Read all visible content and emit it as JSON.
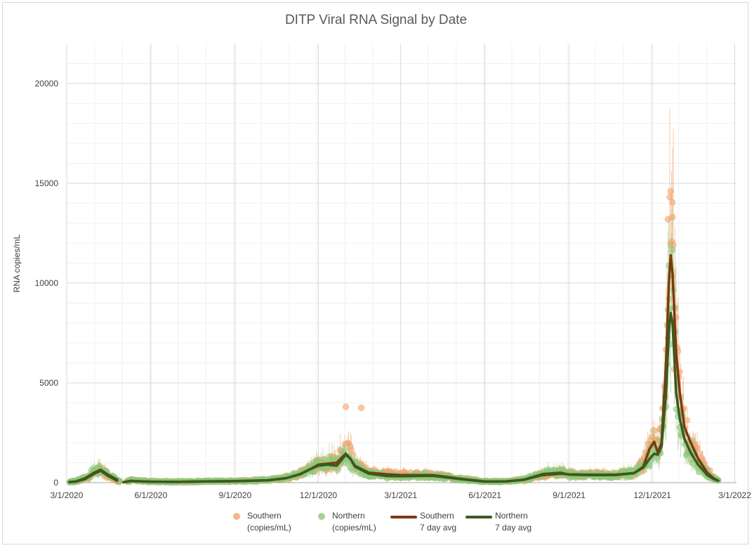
{
  "chart_data": {
    "type": "scatter",
    "title": "DITP Viral RNA Signal by Date",
    "xlabel": "",
    "ylabel": "RNA copies/mL",
    "ylim": [
      0,
      22000
    ],
    "yticks": [
      0,
      5000,
      10000,
      15000,
      20000
    ],
    "ytick_labels": [
      "0",
      "5000",
      "10000",
      "15000",
      "20000"
    ],
    "xlim_days": [
      0,
      732
    ],
    "xticks": [
      {
        "day": 0,
        "label": "3/1/2020"
      },
      {
        "day": 92,
        "label": "6/1/2020"
      },
      {
        "day": 184,
        "label": "9/1/2020"
      },
      {
        "day": 275,
        "label": "12/1/2020"
      },
      {
        "day": 365,
        "label": "3/1/2021"
      },
      {
        "day": 457,
        "label": "6/1/2021"
      },
      {
        "day": 549,
        "label": "9/1/2021"
      },
      {
        "day": 640,
        "label": "12/1/2021"
      },
      {
        "day": 730,
        "label": "3/1/2022"
      }
    ],
    "grid": true,
    "legend_position": "bottom",
    "series": [
      {
        "name": "Southern (copies/mL)",
        "kind": "scatter",
        "color": "#f4a36b",
        "profile": [
          [
            3,
            30
          ],
          [
            10,
            60
          ],
          [
            20,
            200
          ],
          [
            30,
            450
          ],
          [
            37,
            700
          ],
          [
            45,
            350
          ],
          [
            55,
            100
          ],
          [
            62,
            0
          ],
          [
            70,
            150
          ],
          [
            80,
            90
          ],
          [
            92,
            60
          ],
          [
            120,
            40
          ],
          [
            150,
            60
          ],
          [
            184,
            80
          ],
          [
            220,
            120
          ],
          [
            240,
            250
          ],
          [
            255,
            450
          ],
          [
            265,
            700
          ],
          [
            275,
            1000
          ],
          [
            285,
            900
          ],
          [
            295,
            1100
          ],
          [
            305,
            1800
          ],
          [
            315,
            900
          ],
          [
            330,
            500
          ],
          [
            350,
            450
          ],
          [
            365,
            400
          ],
          [
            400,
            400
          ],
          [
            430,
            200
          ],
          [
            457,
            60
          ],
          [
            480,
            60
          ],
          [
            500,
            150
          ],
          [
            520,
            400
          ],
          [
            540,
            500
          ],
          [
            549,
            420
          ],
          [
            570,
            400
          ],
          [
            600,
            400
          ],
          [
            620,
            500
          ],
          [
            630,
            900
          ],
          [
            637,
            1800
          ],
          [
            642,
            2100
          ],
          [
            646,
            1600
          ],
          [
            650,
            2600
          ],
          [
            655,
            6500
          ],
          [
            658,
            12000
          ],
          [
            660,
            13500
          ],
          [
            662,
            11000
          ],
          [
            666,
            6500
          ],
          [
            670,
            4500
          ],
          [
            675,
            2800
          ],
          [
            682,
            2000
          ],
          [
            690,
            1300
          ],
          [
            700,
            600
          ],
          [
            707,
            250
          ],
          [
            712,
            100
          ]
        ]
      },
      {
        "name": "Northern (copies/mL)",
        "kind": "scatter",
        "color": "#8cc97a",
        "profile": [
          [
            3,
            30
          ],
          [
            10,
            80
          ],
          [
            20,
            250
          ],
          [
            30,
            550
          ],
          [
            37,
            650
          ],
          [
            45,
            400
          ],
          [
            55,
            150
          ],
          [
            62,
            0
          ],
          [
            70,
            120
          ],
          [
            80,
            80
          ],
          [
            92,
            50
          ],
          [
            120,
            40
          ],
          [
            150,
            60
          ],
          [
            184,
            70
          ],
          [
            220,
            120
          ],
          [
            240,
            250
          ],
          [
            255,
            450
          ],
          [
            265,
            700
          ],
          [
            275,
            900
          ],
          [
            285,
            1000
          ],
          [
            295,
            900
          ],
          [
            305,
            1300
          ],
          [
            315,
            800
          ],
          [
            330,
            450
          ],
          [
            350,
            350
          ],
          [
            365,
            330
          ],
          [
            400,
            350
          ],
          [
            430,
            180
          ],
          [
            457,
            50
          ],
          [
            480,
            60
          ],
          [
            500,
            150
          ],
          [
            520,
            450
          ],
          [
            540,
            550
          ],
          [
            549,
            400
          ],
          [
            570,
            380
          ],
          [
            600,
            380
          ],
          [
            620,
            500
          ],
          [
            630,
            800
          ],
          [
            637,
            1300
          ],
          [
            642,
            1500
          ],
          [
            646,
            1500
          ],
          [
            650,
            2200
          ],
          [
            655,
            5000
          ],
          [
            658,
            8500
          ],
          [
            660,
            10500
          ],
          [
            662,
            9000
          ],
          [
            666,
            4500
          ],
          [
            670,
            3200
          ],
          [
            675,
            2200
          ],
          [
            682,
            1500
          ],
          [
            690,
            900
          ],
          [
            700,
            400
          ],
          [
            707,
            200
          ],
          [
            712,
            100
          ]
        ]
      },
      {
        "name": "Southern 7 day avg",
        "kind": "line",
        "color": "#7b3a0e",
        "points": [
          [
            3,
            30
          ],
          [
            10,
            50
          ],
          [
            20,
            180
          ],
          [
            30,
            450
          ],
          [
            37,
            600
          ],
          [
            45,
            350
          ],
          [
            55,
            100
          ],
          [
            62,
            20
          ],
          [
            70,
            80
          ],
          [
            80,
            70
          ],
          [
            92,
            50
          ],
          [
            120,
            40
          ],
          [
            150,
            60
          ],
          [
            184,
            80
          ],
          [
            220,
            120
          ],
          [
            240,
            230
          ],
          [
            255,
            420
          ],
          [
            265,
            650
          ],
          [
            275,
            900
          ],
          [
            285,
            950
          ],
          [
            295,
            1000
          ],
          [
            305,
            1450
          ],
          [
            310,
            1200
          ],
          [
            315,
            850
          ],
          [
            330,
            500
          ],
          [
            350,
            420
          ],
          [
            365,
            380
          ],
          [
            400,
            380
          ],
          [
            430,
            200
          ],
          [
            457,
            60
          ],
          [
            480,
            60
          ],
          [
            500,
            150
          ],
          [
            520,
            380
          ],
          [
            540,
            450
          ],
          [
            549,
            420
          ],
          [
            570,
            400
          ],
          [
            600,
            400
          ],
          [
            620,
            480
          ],
          [
            630,
            800
          ],
          [
            637,
            1700
          ],
          [
            642,
            2050
          ],
          [
            646,
            1500
          ],
          [
            650,
            2000
          ],
          [
            655,
            6000
          ],
          [
            658,
            10000
          ],
          [
            660,
            11400
          ],
          [
            662,
            10500
          ],
          [
            666,
            6500
          ],
          [
            670,
            4500
          ],
          [
            675,
            2800
          ],
          [
            682,
            2000
          ],
          [
            690,
            1200
          ],
          [
            700,
            500
          ],
          [
            707,
            220
          ],
          [
            712,
            100
          ]
        ]
      },
      {
        "name": "Northern 7 day avg",
        "kind": "line",
        "color": "#3a5a22",
        "points": [
          [
            3,
            30
          ],
          [
            10,
            60
          ],
          [
            20,
            220
          ],
          [
            30,
            500
          ],
          [
            37,
            650
          ],
          [
            45,
            400
          ],
          [
            55,
            150
          ],
          [
            62,
            20
          ],
          [
            70,
            90
          ],
          [
            80,
            60
          ],
          [
            92,
            50
          ],
          [
            120,
            40
          ],
          [
            150,
            60
          ],
          [
            184,
            70
          ],
          [
            220,
            120
          ],
          [
            240,
            230
          ],
          [
            255,
            430
          ],
          [
            265,
            650
          ],
          [
            275,
            850
          ],
          [
            285,
            900
          ],
          [
            295,
            850
          ],
          [
            305,
            1400
          ],
          [
            310,
            1200
          ],
          [
            315,
            800
          ],
          [
            330,
            450
          ],
          [
            350,
            330
          ],
          [
            365,
            320
          ],
          [
            400,
            340
          ],
          [
            430,
            180
          ],
          [
            457,
            50
          ],
          [
            480,
            60
          ],
          [
            500,
            150
          ],
          [
            520,
            430
          ],
          [
            540,
            500
          ],
          [
            549,
            400
          ],
          [
            570,
            380
          ],
          [
            600,
            380
          ],
          [
            620,
            480
          ],
          [
            630,
            750
          ],
          [
            637,
            1200
          ],
          [
            642,
            1450
          ],
          [
            646,
            1400
          ],
          [
            650,
            1800
          ],
          [
            655,
            4500
          ],
          [
            658,
            7500
          ],
          [
            660,
            8500
          ],
          [
            662,
            8000
          ],
          [
            666,
            4500
          ],
          [
            670,
            3200
          ],
          [
            675,
            2200
          ],
          [
            682,
            1500
          ],
          [
            690,
            900
          ],
          [
            700,
            380
          ],
          [
            707,
            180
          ],
          [
            712,
            100
          ]
        ]
      }
    ],
    "legend": [
      {
        "line1": "Southern",
        "line2": "(copies/mL)",
        "color": "#f4a36b",
        "kind": "dot"
      },
      {
        "line1": "Northern",
        "line2": "(copies/mL)",
        "color": "#8cc97a",
        "kind": "dot"
      },
      {
        "line1": "Southern",
        "line2": "7 day avg",
        "color": "#7b3a0e",
        "kind": "line"
      },
      {
        "line1": "Northern",
        "line2": "7 day avg",
        "color": "#3a5a22",
        "kind": "line"
      }
    ]
  }
}
